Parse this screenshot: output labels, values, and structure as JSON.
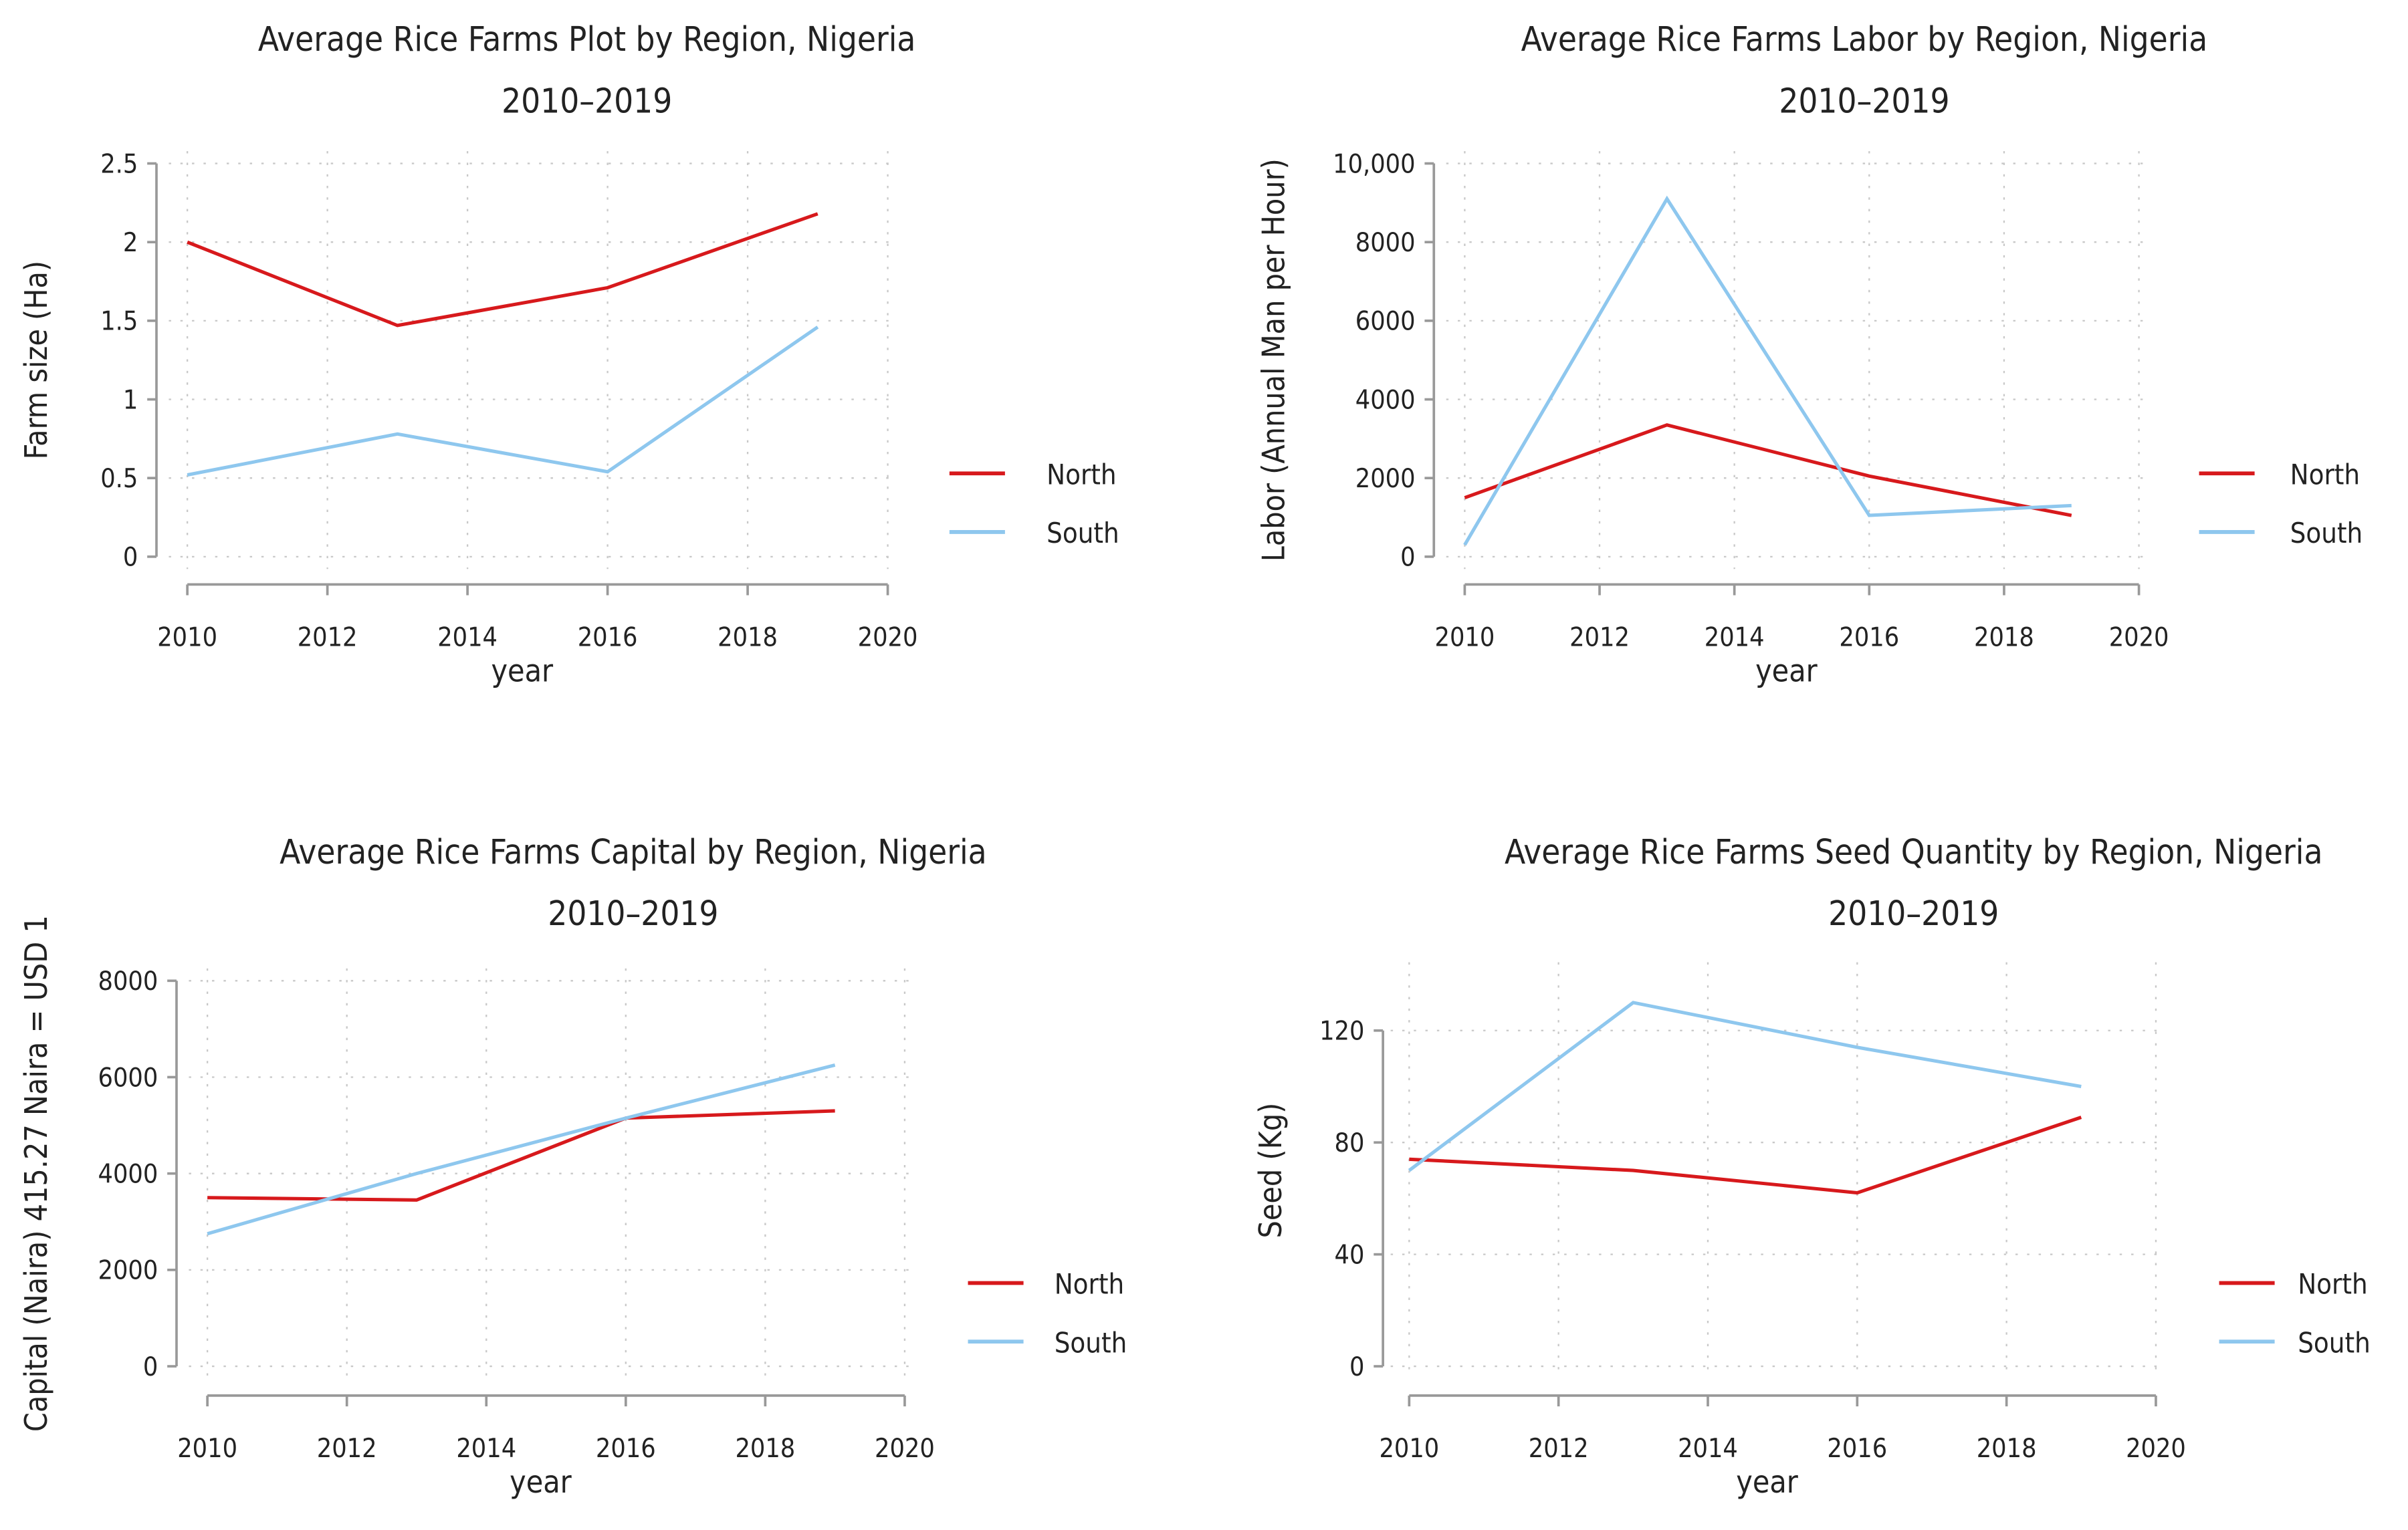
{
  "colors": {
    "North": "#d7191c",
    "South": "#8ec7ee"
  },
  "chart_data": [
    {
      "type": "line",
      "title": "Average Rice Farms Plot by Region, Nigeria",
      "subtitle": "2010–2019",
      "xlabel": "year",
      "ylabel": "Farm size (Ha)",
      "xlim": [
        2010,
        2020
      ],
      "ylim": [
        0,
        2.5
      ],
      "xticks": [
        2010,
        2012,
        2014,
        2016,
        2018,
        2020
      ],
      "yticks": [
        0,
        0.5,
        1,
        1.5,
        2,
        2.5
      ],
      "ytick_labels": [
        "0",
        "0.5",
        "1",
        "1.5",
        "2",
        "2.5"
      ],
      "x": [
        2010,
        2013,
        2016,
        2019
      ],
      "series": [
        {
          "name": "North",
          "values": [
            2.0,
            1.47,
            1.71,
            2.18
          ]
        },
        {
          "name": "South",
          "values": [
            0.52,
            0.78,
            0.54,
            1.46
          ]
        }
      ],
      "legend": "right",
      "grid": true
    },
    {
      "type": "line",
      "title": "Average Rice Farms Labor by Region, Nigeria",
      "subtitle": "2010–2019",
      "xlabel": "year",
      "ylabel": "Labor (Annual Man per Hour)",
      "xlim": [
        2010,
        2020
      ],
      "ylim": [
        0,
        10000
      ],
      "xticks": [
        2010,
        2012,
        2014,
        2016,
        2018,
        2020
      ],
      "yticks": [
        0,
        2000,
        4000,
        6000,
        8000,
        10000
      ],
      "ytick_labels": [
        "0",
        "2000",
        "4000",
        "6000",
        "8000",
        "10,000"
      ],
      "x": [
        2010,
        2013,
        2016,
        2019
      ],
      "series": [
        {
          "name": "North",
          "values": [
            1500,
            3350,
            2050,
            1050
          ]
        },
        {
          "name": "South",
          "values": [
            300,
            9100,
            1050,
            1300
          ]
        }
      ],
      "legend": "right",
      "grid": true
    },
    {
      "type": "line",
      "title": "Average Rice Farms Capital by Region, Nigeria",
      "subtitle": "2010–2019",
      "xlabel": "year",
      "ylabel": "Capital (Naira) 415.27 Naira = USD 1",
      "xlim": [
        2010,
        2020
      ],
      "ylim": [
        0,
        8000
      ],
      "xticks": [
        2010,
        2012,
        2014,
        2016,
        2018,
        2020
      ],
      "yticks": [
        0,
        2000,
        4000,
        6000,
        8000
      ],
      "ytick_labels": [
        "0",
        "2000",
        "4000",
        "6000",
        "8000"
      ],
      "x": [
        2010,
        2013,
        2016,
        2019
      ],
      "series": [
        {
          "name": "North",
          "values": [
            3500,
            3450,
            5150,
            5300
          ]
        },
        {
          "name": "South",
          "values": [
            2750,
            4000,
            5150,
            6250
          ]
        }
      ],
      "legend": "right",
      "grid": true
    },
    {
      "type": "line",
      "title": "Average Rice Farms Seed Quantity by Region, Nigeria",
      "subtitle": "2010–2019",
      "xlabel": "year",
      "ylabel": "Seed (Kg)",
      "xlim": [
        2010,
        2020
      ],
      "ylim": [
        0,
        140
      ],
      "xticks": [
        2010,
        2012,
        2014,
        2016,
        2018,
        2020
      ],
      "yticks": [
        0,
        40,
        80,
        120
      ],
      "ytick_labels": [
        "0",
        "40",
        "80",
        "120"
      ],
      "x": [
        2010,
        2013,
        2016,
        2019
      ],
      "series": [
        {
          "name": "North",
          "values": [
            74,
            70,
            62,
            89
          ]
        },
        {
          "name": "South",
          "values": [
            70,
            130,
            114,
            100
          ]
        }
      ],
      "legend": "right",
      "grid": true
    }
  ]
}
